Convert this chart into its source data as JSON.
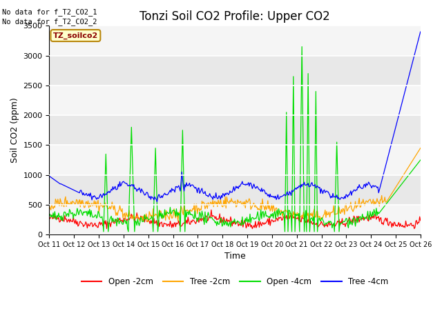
{
  "title": "Tonzi Soil CO2 Profile: Upper CO2",
  "ylabel": "Soil CO2 (ppm)",
  "xlabel": "Time",
  "no_data_text1": "No data for f_T2_CO2_1",
  "no_data_text2": "No data for f_T2_CO2_2",
  "dataset_label": "TZ_soilco2",
  "ylim": [
    0,
    3500
  ],
  "xtick_labels": [
    "Oct 11",
    "Oct 12",
    "Oct 13",
    "Oct 14",
    "Oct 15",
    "Oct 16",
    "Oct 17",
    "Oct 18",
    "Oct 19",
    "Oct 20",
    "Oct 21",
    "Oct 22",
    "Oct 23",
    "Oct 24",
    "Oct 25",
    "Oct 26"
  ],
  "legend_entries": [
    "Open -2cm",
    "Tree -2cm",
    "Open -4cm",
    "Tree -4cm"
  ],
  "colors": {
    "open_2cm": "#ff0000",
    "tree_2cm": "#ffa500",
    "open_4cm": "#00dd00",
    "tree_4cm": "#0000ff"
  },
  "fig_bg_color": "#ffffff",
  "plot_bg_color": "#e8e8e8",
  "band_color1": "#e8e8e8",
  "band_color2": "#d0d0d0",
  "title_fontsize": 12,
  "tick_fontsize": 8,
  "label_fontsize": 9,
  "linewidth": 0.9
}
